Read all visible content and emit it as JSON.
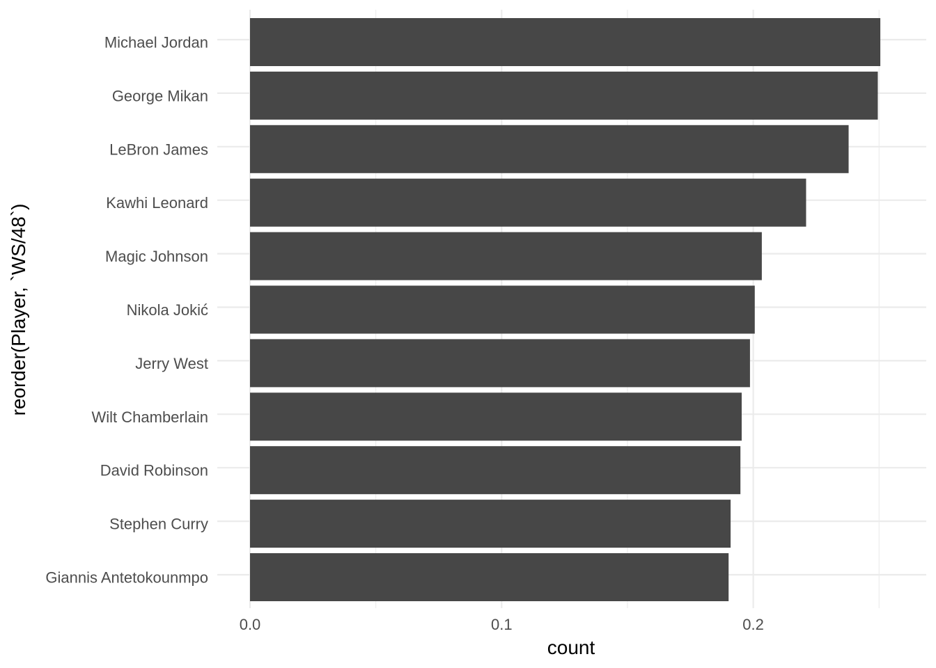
{
  "chart_data": {
    "type": "bar",
    "orientation": "horizontal",
    "title": "",
    "xlabel": "count",
    "ylabel": "reorder(Player, `WS/48`)",
    "categories": [
      "Michael Jordan",
      "George Mikan",
      "LeBron James",
      "Kawhi Leonard",
      "Magic Johnson",
      "Nikola Jokić",
      "Jerry West",
      "Wilt Chamberlain",
      "David Robinson",
      "Stephen Curry",
      "Giannis Antetokounmpo"
    ],
    "values": [
      0.2505,
      0.2495,
      0.2379,
      0.221,
      0.2034,
      0.2006,
      0.1987,
      0.1954,
      0.1949,
      0.191,
      0.1902
    ],
    "xlim": [
      0,
      0.26
    ],
    "x_ticks": [
      0.0,
      0.1,
      0.2
    ],
    "x_tick_labels": [
      "0.0",
      "0.1",
      "0.2"
    ],
    "x_minor_ticks": [
      0.05,
      0.15,
      0.25
    ],
    "grid": true,
    "bar_color": "#474747",
    "grid_color": "#ebebeb"
  }
}
